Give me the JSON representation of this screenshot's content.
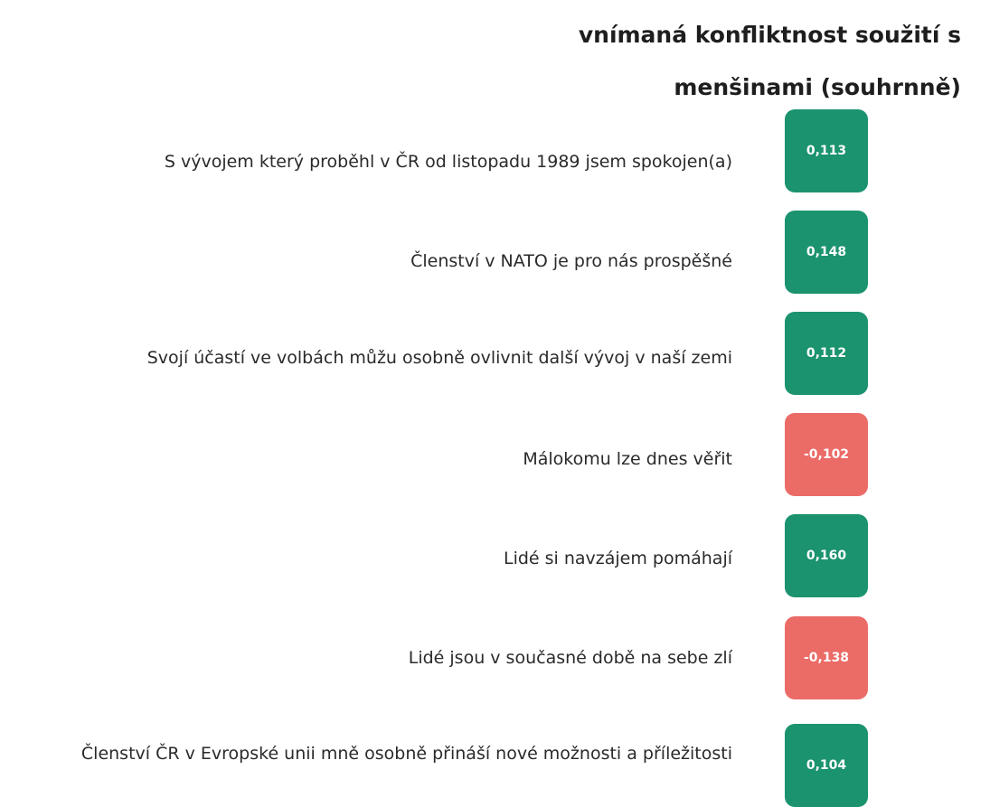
{
  "title": "vnímaná konfliktnost soužití s menšinami (souhrnně)",
  "table": {
    "rows": [
      {
        "label": "S vývojem který proběhl v ČR od listopadu 1989 jsem spokojen(a)",
        "value": "0,113",
        "color": "#1b936f"
      },
      {
        "label": "Členství v NATO je pro nás prospěšné",
        "value": "0,148",
        "color": "#1b936f"
      },
      {
        "label": "Svojí účastí ve volbách můžu osobně ovlivnit další vývoj v naší zemi",
        "value": "0,112",
        "color": "#1b936f"
      },
      {
        "label": "Málokomu lze dnes věřit",
        "value": "-0,102",
        "color": "#eb6b67"
      },
      {
        "label": "Lidé si navzájem pomáhají",
        "value": "0,160",
        "color": "#1b936f"
      },
      {
        "label": "Lidé jsou v současné době na sebe zlí",
        "value": "-0,138",
        "color": "#eb6b67"
      },
      {
        "label": "Členství ČR v Evropské unii mně osobně přináší nové možnosti a příležitosti",
        "value": "0,104",
        "color": "#1b936f"
      }
    ]
  }
}
